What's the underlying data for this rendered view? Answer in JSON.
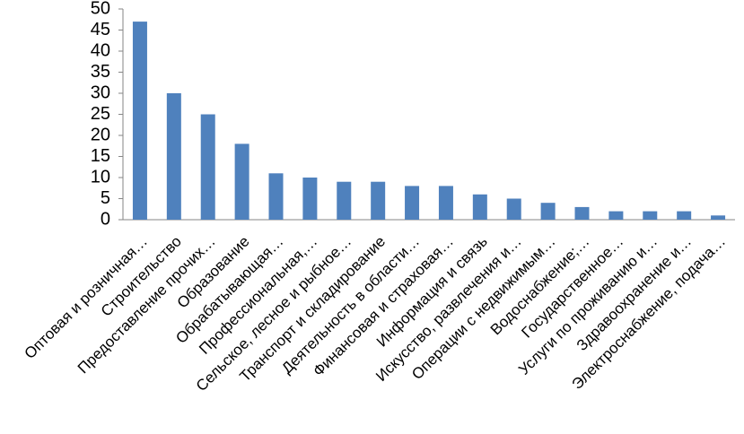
{
  "chart_data": {
    "type": "bar",
    "categories": [
      "Оптовая и розничная…",
      "Строительство",
      "Предоставление прочих…",
      "Образование",
      "Обрабатывающая…",
      "Профессиональная,…",
      "Сельское, лесное и рыбное…",
      "Транспорт и складирование",
      "Деятельность в области…",
      "Финансовая и страховая…",
      "Информация и связь",
      "Искусство, развлечения и…",
      "Операции с недвижимым…",
      "Водоснабжение;…",
      "Государственное…",
      "Услуги по проживанию и…",
      "Здравоохранение и…",
      "Электроснабжение, подача…"
    ],
    "values": [
      47,
      30,
      25,
      18,
      11,
      10,
      9,
      9,
      8,
      8,
      6,
      5,
      4,
      3,
      2,
      2,
      2,
      1
    ],
    "color": "#4f81bd",
    "ylim": [
      0,
      50
    ],
    "yticks": [
      0,
      5,
      10,
      15,
      20,
      25,
      30,
      35,
      40,
      45,
      50
    ],
    "grid": false
  }
}
